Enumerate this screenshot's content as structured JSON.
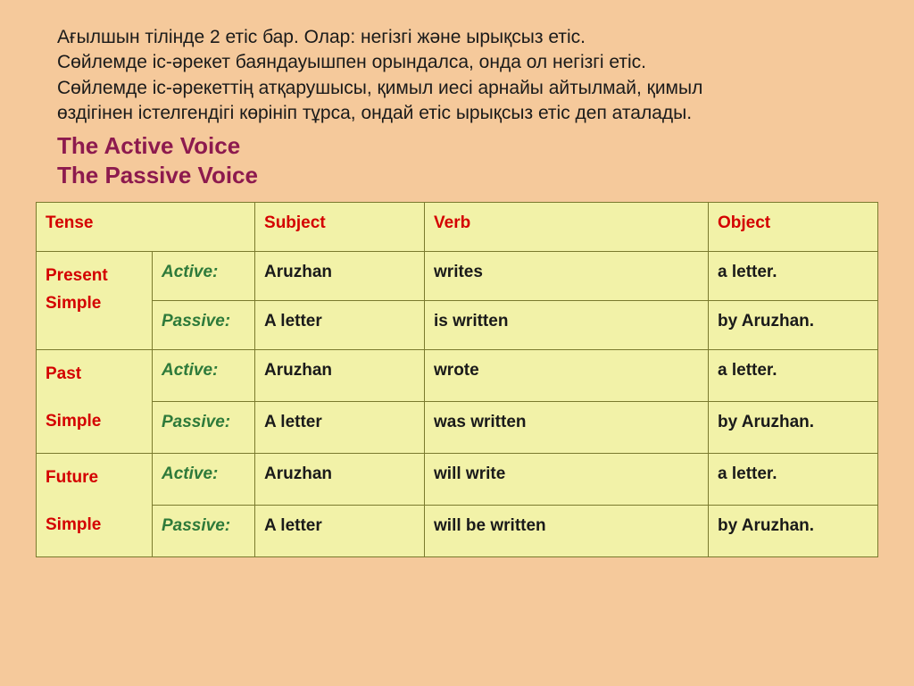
{
  "intro": {
    "line1": "Ағылшын тілінде 2 етіс бар. Олар: негізгі және ырықсыз етіс.",
    "line2": "Сөйлемде іс-әрекет баяндауышпен орындалса, онда ол негізгі етіс.",
    "line3": "Сөйлемде іс-әрекеттің атқарушысы, қимыл иесі арнайы айтылмай, қимыл",
    "line4": "өздігінен істелгендігі көрініп тұрса, ондай етіс ырықсыз етіс деп аталады."
  },
  "headings": {
    "active": "The Active Voice",
    "passive": "The Passive Voice"
  },
  "table": {
    "headers": {
      "tense": "Tense",
      "subject": "Subject",
      "verb": "Verb",
      "object": "Object"
    },
    "tenses": [
      {
        "name_line1": "Present",
        "name_line2": "Simple",
        "active": {
          "label": "Active:",
          "subject": "Aruzhan",
          "verb": "writes",
          "object": "a letter."
        },
        "passive": {
          "label": "Passive:",
          "subject": "A letter",
          "verb": "is written",
          "object": "by Aruzhan."
        }
      },
      {
        "name_line1": "Past",
        "name_line2": "Simple",
        "active": {
          "label": "Active:",
          "subject": "Aruzhan",
          "verb": "wrote",
          "object": "a letter."
        },
        "passive": {
          "label": "Passive:",
          "subject": "A letter",
          "verb": "was written",
          "object": "by Aruzhan."
        }
      },
      {
        "name_line1": "Future",
        "name_line2": "Simple",
        "active": {
          "label": "Active:",
          "subject": "Aruzhan",
          "verb": "will write",
          "object": "a letter."
        },
        "passive": {
          "label": "Passive:",
          "subject": "A letter",
          "verb": "will be written",
          "object": "by Aruzhan."
        }
      }
    ]
  },
  "style": {
    "background_color": "#f5c99b",
    "cell_background": "#f2f2a8",
    "cell_border": "#7a7a2e",
    "heading_color": "#8d1a4e",
    "header_text_color": "#d40000",
    "tense_color": "#d40000",
    "voice_color": "#2e7a3a",
    "body_text_color": "#1a1a1a",
    "intro_fontsize": 21,
    "heading_fontsize": 26,
    "cell_fontsize": 19
  }
}
